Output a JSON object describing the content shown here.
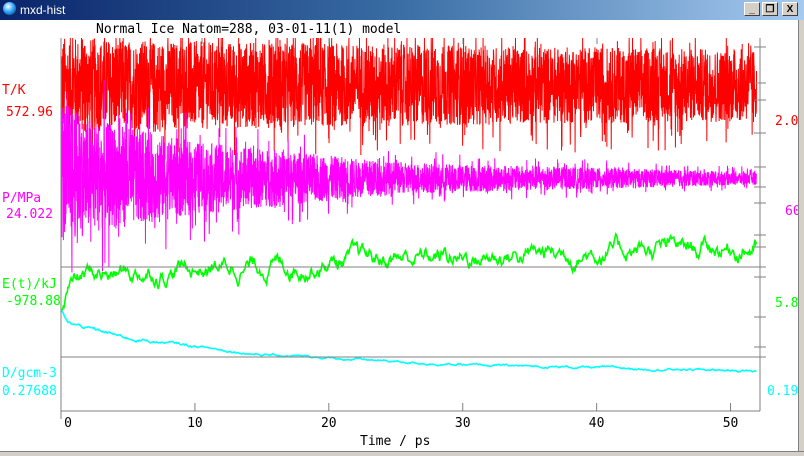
{
  "window": {
    "title": "mxd-hist",
    "buttons": {
      "minimize": "_",
      "restore": "❐",
      "close": "X"
    }
  },
  "chart_data": {
    "type": "line",
    "title": "Normal Ice  Natom=288,   03-01-11(1) model",
    "xlabel": "Time / ps",
    "xlim": [
      0,
      52.2
    ],
    "xticks": [
      0,
      10,
      20,
      30,
      40,
      50
    ],
    "xtick_labels": [
      "0",
      "10",
      "20",
      "30",
      "40",
      "50"
    ],
    "series": [
      {
        "name": "T/K",
        "left_value": "572.96",
        "right_label": "2.0",
        "color": "#ff0000",
        "ylim": [
          -200,
          685
        ],
        "trend_t": [
          0,
          5,
          20,
          52
        ],
        "trend_mean": [
          573,
          573,
          573,
          573
        ],
        "trend_noise": [
          130,
          120,
          110,
          95
        ]
      },
      {
        "name": "P/MPa",
        "left_value": "24.022",
        "right_label": "60",
        "color": "#ff00ff",
        "ylim": [
          -176,
          144.5
        ],
        "trend_t": [
          0,
          2,
          10,
          25,
          52
        ],
        "trend_mean": [
          30,
          26,
          24,
          24,
          24
        ],
        "trend_noise": [
          70,
          55,
          35,
          15,
          6
        ]
      },
      {
        "name": "E(t)/kJ",
        "left_value": "-978.88",
        "right_label": "5.8",
        "color": "#00ff00",
        "ylim": [
          -1000,
          -951.6
        ],
        "trend_t": [
          0,
          0.5,
          2,
          10,
          25,
          52
        ],
        "trend_mean": [
          -986.5,
          -983.5,
          -982.5,
          -981.5,
          -980.2,
          -978.6
        ],
        "trend_noise": [
          0.3,
          0.3,
          0.35,
          0.35,
          0.35,
          0.35
        ]
      },
      {
        "name": "D/gcm-3",
        "left_value": "0.27688",
        "right_label": "0.19",
        "color": "#00ffff",
        "ylim": [
          0.27381,
          0.29885
        ],
        "trend_t": [
          0,
          0.5,
          5,
          15,
          30,
          52
        ],
        "trend_mean": [
          0.2806,
          0.2797,
          0.2787,
          0.2776,
          0.2769,
          0.2765
        ],
        "trend_noise": [
          3e-05,
          3e-05,
          3e-05,
          2e-05,
          2e-05,
          2e-05
        ]
      }
    ]
  }
}
